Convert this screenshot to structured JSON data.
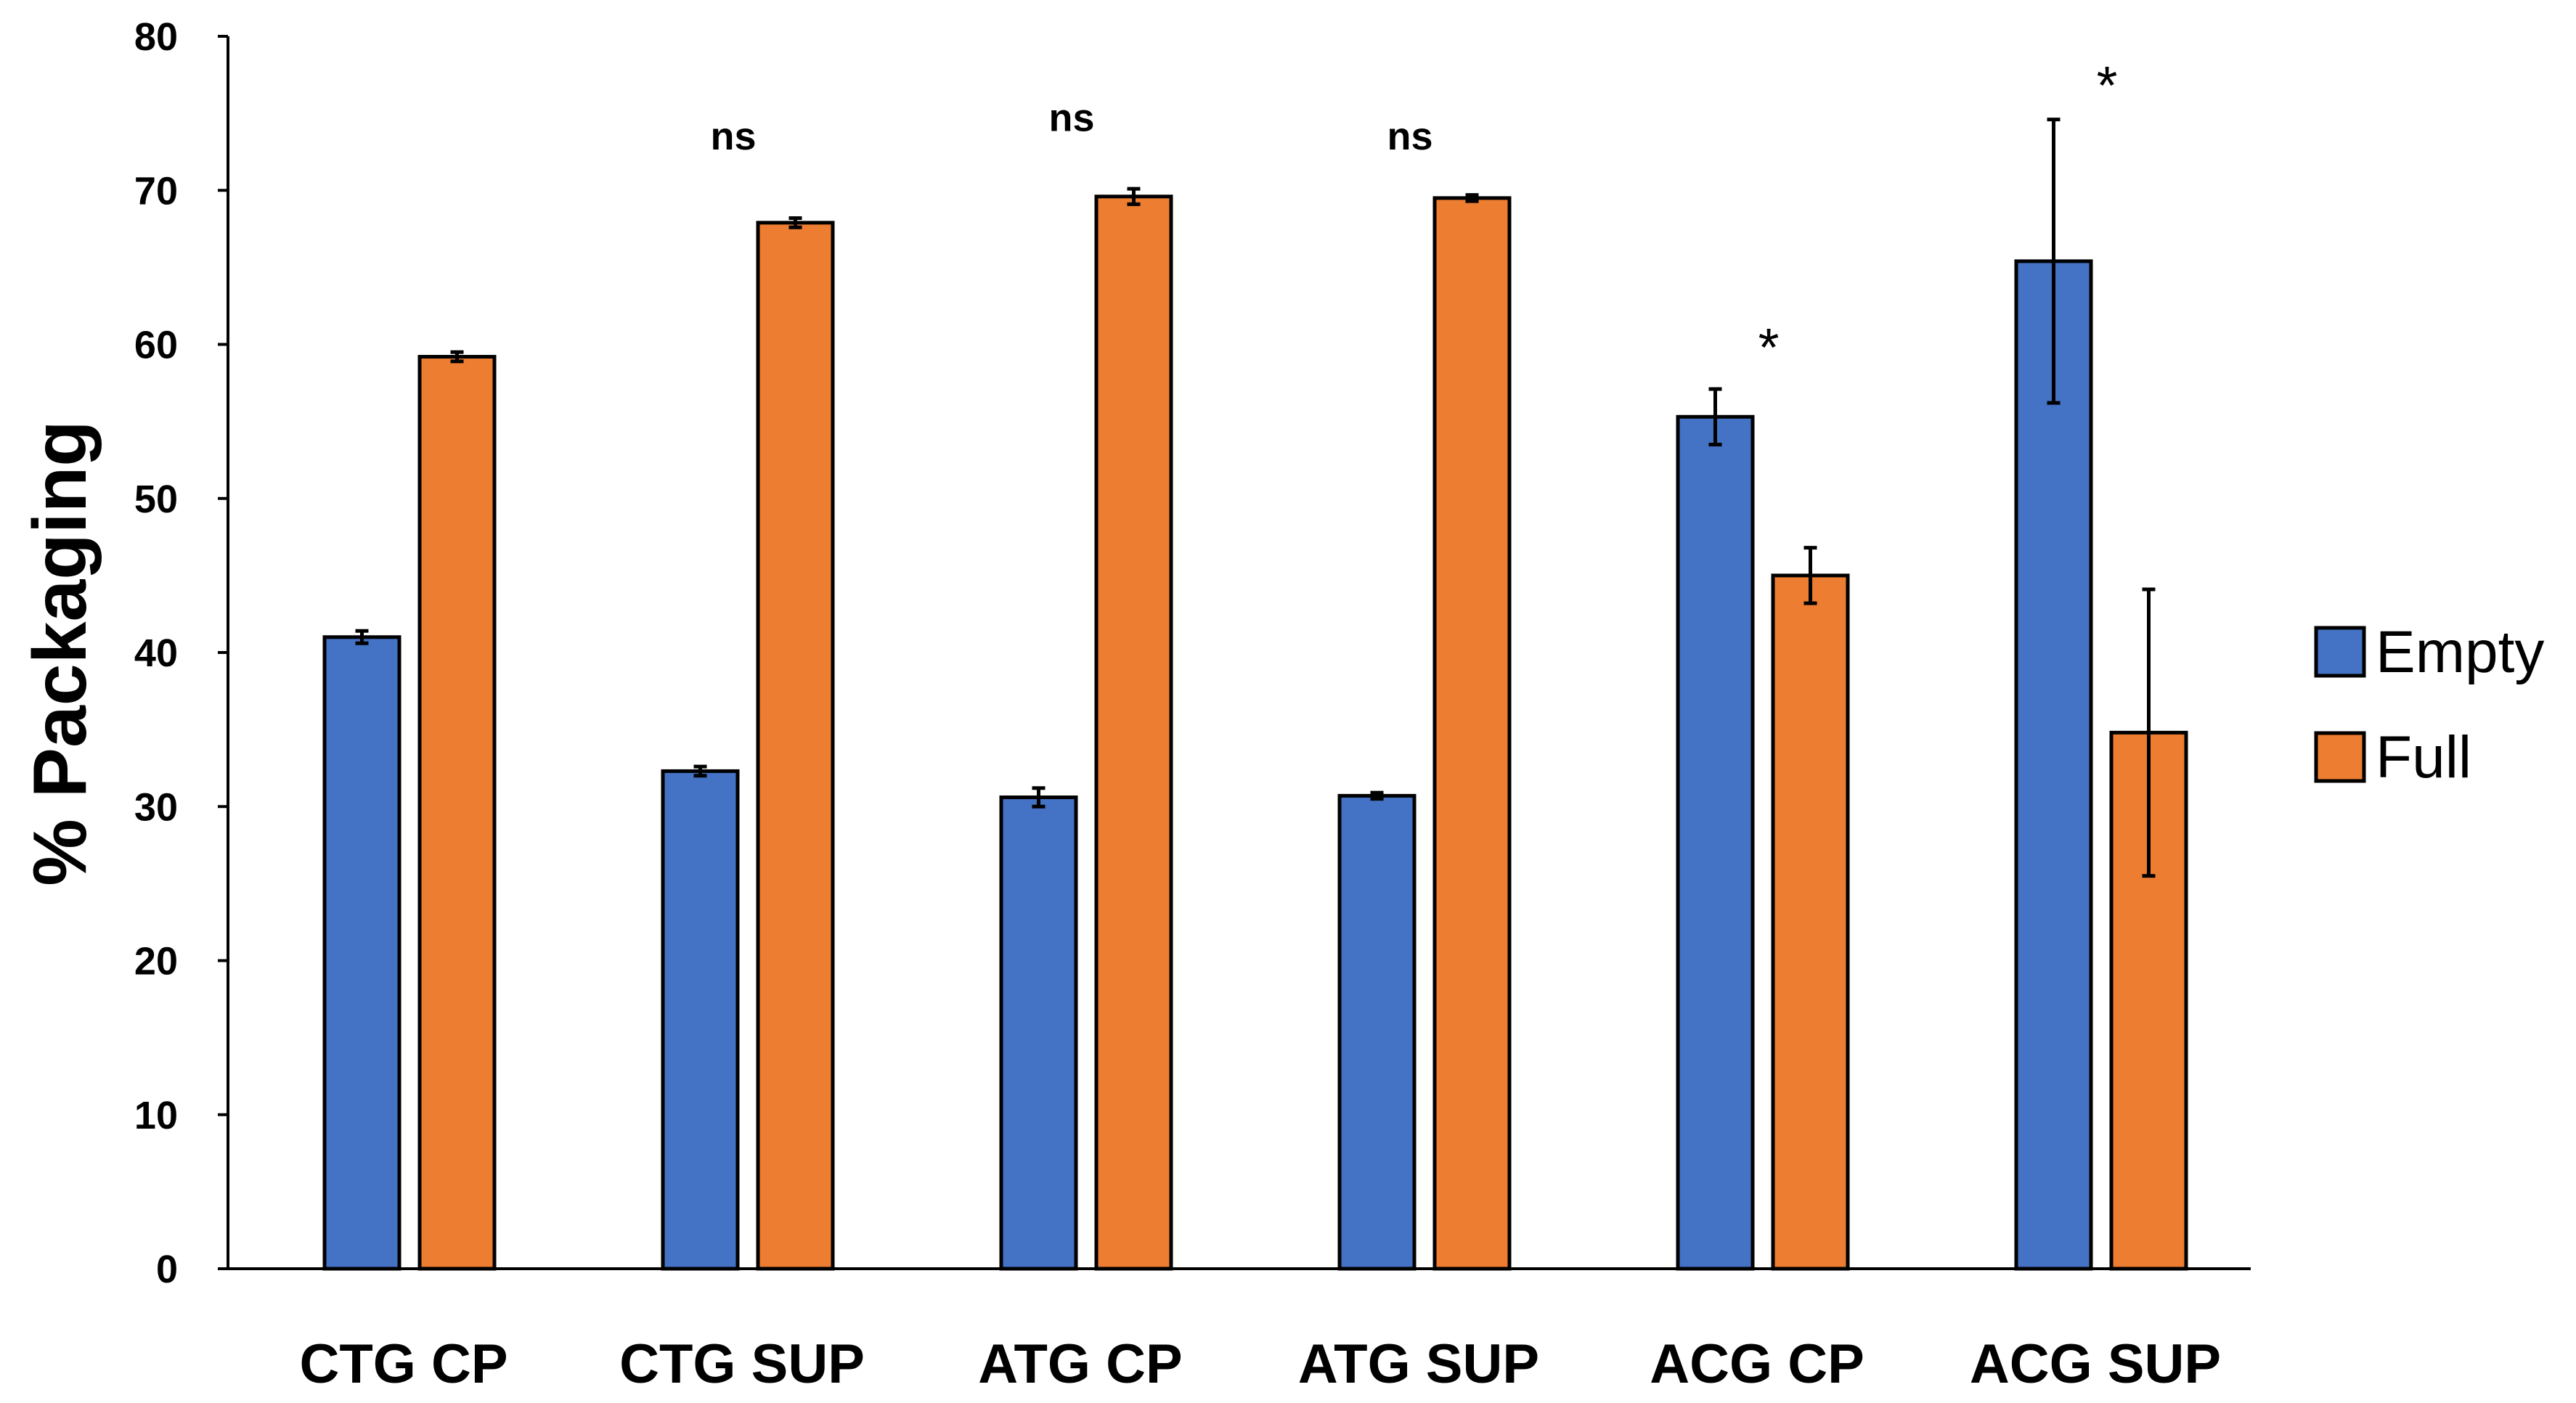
{
  "chart_data": {
    "type": "bar",
    "title": "",
    "xlabel": "",
    "ylabel": "% Packaging",
    "ylim": [
      0,
      80
    ],
    "yticks": [
      0,
      10,
      20,
      30,
      40,
      50,
      60,
      70,
      80
    ],
    "grid": false,
    "legend_position": "right",
    "categories": [
      "CTG CP",
      "CTG SUP",
      "ATG CP",
      "ATG SUP",
      "ACG CP",
      "ACG SUP"
    ],
    "series": [
      {
        "name": "Empty",
        "color": "#4472C4",
        "values": [
          41.0,
          32.3,
          30.6,
          30.7,
          55.3,
          65.4
        ],
        "errors": [
          0.4,
          0.3,
          0.6,
          0.2,
          1.8,
          9.2
        ]
      },
      {
        "name": "Full",
        "color": "#ED7D31",
        "values": [
          59.2,
          67.9,
          69.6,
          69.5,
          45.0,
          34.8
        ],
        "errors": [
          0.3,
          0.3,
          0.5,
          0.2,
          1.8,
          9.3
        ]
      }
    ],
    "annotations": [
      {
        "category": "CTG SUP",
        "text": "ns",
        "y": 73.5
      },
      {
        "category": "ATG CP",
        "text": "ns",
        "y": 74.7
      },
      {
        "category": "ATG SUP",
        "text": "ns",
        "y": 73.5
      },
      {
        "category": "ACG CP",
        "text": "*",
        "y": 60.5
      },
      {
        "category": "ACG SUP",
        "text": "*",
        "y": 77.5
      }
    ]
  }
}
